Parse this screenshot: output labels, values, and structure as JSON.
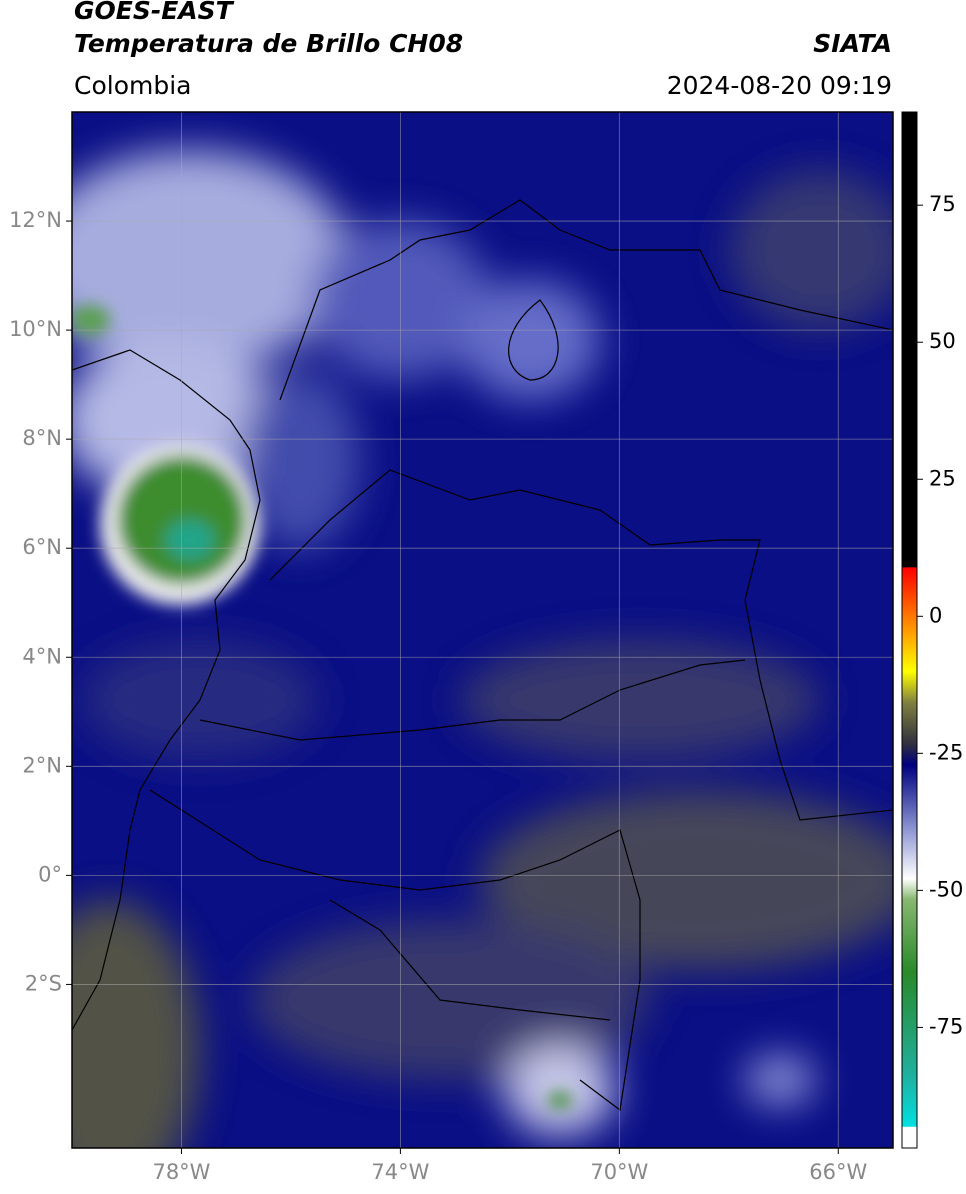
{
  "header": {
    "title": "GOES-EAST",
    "subtitle": "Temperatura de Brillo CH08",
    "region": "Colombia",
    "source": "SIATA",
    "datetime": "2024-08-20 09:19"
  },
  "map": {
    "lonlim": [
      -80,
      -65
    ],
    "latlim": [
      -5,
      14
    ],
    "lon_ticks": [
      {
        "value": -78,
        "label": "78°W"
      },
      {
        "value": -74,
        "label": "74°W"
      },
      {
        "value": -70,
        "label": "70°W"
      },
      {
        "value": -66,
        "label": "66°W"
      }
    ],
    "lat_ticks": [
      {
        "value": 12,
        "label": "12°N"
      },
      {
        "value": 10,
        "label": "10°N"
      },
      {
        "value": 8,
        "label": "8°N"
      },
      {
        "value": 6,
        "label": "6°N"
      },
      {
        "value": 4,
        "label": "4°N"
      },
      {
        "value": 2,
        "label": "2°N"
      },
      {
        "value": 0,
        "label": "0°"
      },
      {
        "value": -2,
        "label": "2°S"
      }
    ],
    "grid": true
  },
  "colorbar": {
    "lim": [
      -97,
      92
    ],
    "ticks": [
      75,
      50,
      25,
      0,
      -25,
      -50,
      -75
    ]
  }
}
